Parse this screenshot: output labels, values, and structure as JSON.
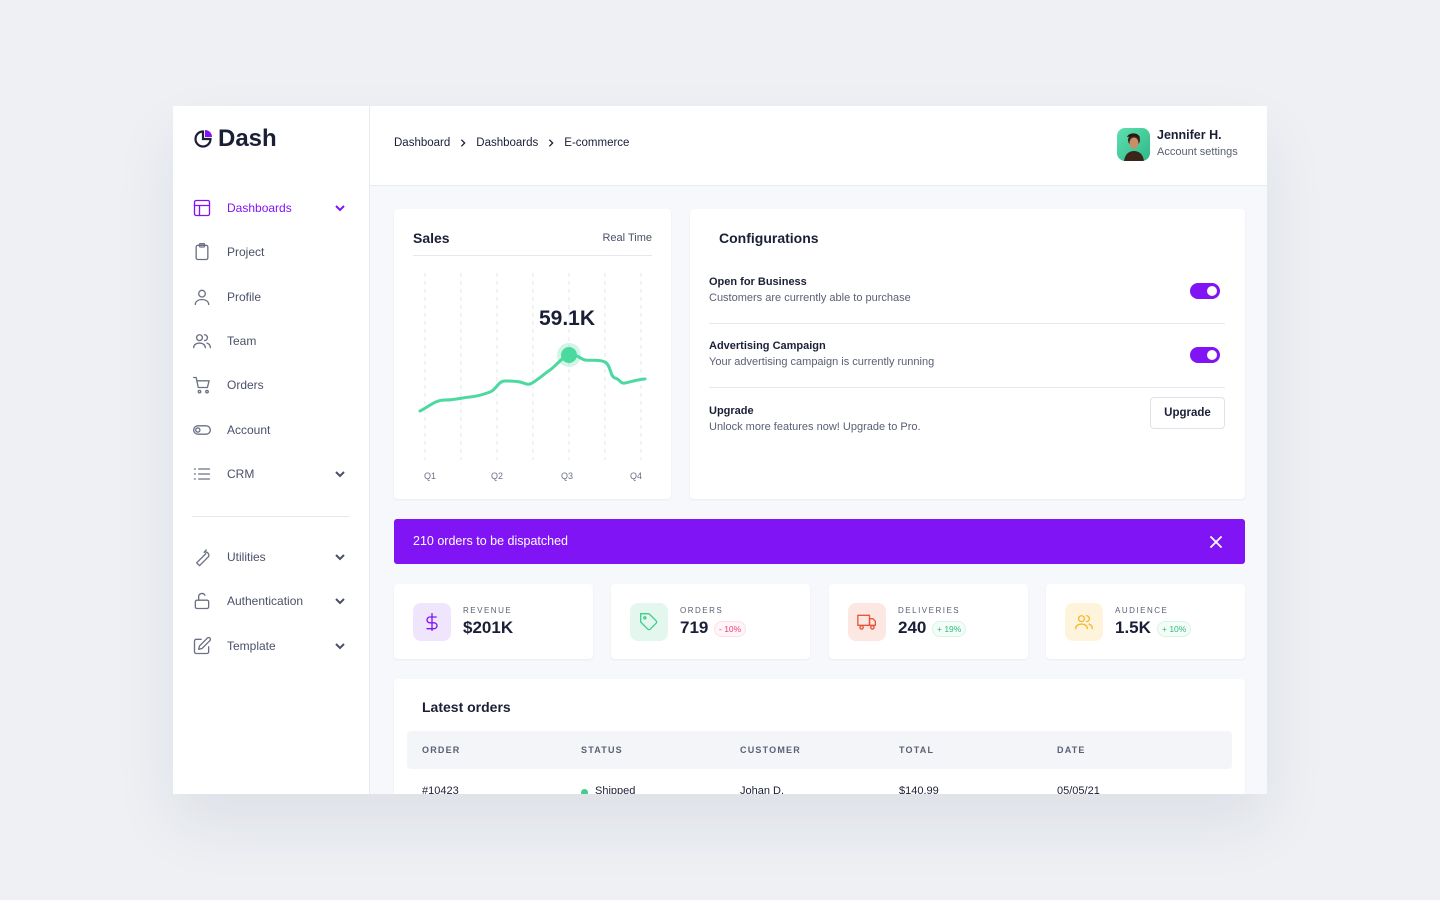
{
  "brand": "Dash",
  "nav": {
    "primary": [
      {
        "label": "Dashboards",
        "active": true,
        "expandable": true
      },
      {
        "label": "Project",
        "active": false,
        "expandable": false
      },
      {
        "label": "Profile",
        "active": false,
        "expandable": false
      },
      {
        "label": "Team",
        "active": false,
        "expandable": false
      },
      {
        "label": "Orders",
        "active": false,
        "expandable": false
      },
      {
        "label": "Account",
        "active": false,
        "expandable": false
      },
      {
        "label": "CRM",
        "active": false,
        "expandable": true
      }
    ],
    "secondary": [
      {
        "label": "Utilities",
        "active": false,
        "expandable": true
      },
      {
        "label": "Authentication",
        "active": false,
        "expandable": true
      },
      {
        "label": "Template",
        "active": false,
        "expandable": true
      }
    ]
  },
  "breadcrumb": [
    "Dashboard",
    "Dashboards",
    "E-commerce"
  ],
  "user": {
    "name": "Jennifer H.",
    "link": "Account settings"
  },
  "sales": {
    "title": "Sales",
    "mode": "Real Time",
    "highlight": "59.1K",
    "quarters": [
      "Q1",
      "Q2",
      "Q3",
      "Q4"
    ]
  },
  "configurations": {
    "title": "Configurations",
    "settings": [
      {
        "title": "Open for Business",
        "description": "Customers are currently able to purchase",
        "enabled": true
      },
      {
        "title": "Advertising Campaign",
        "description": "Your advertising campaign is currently running",
        "enabled": true
      },
      {
        "title": "Upgrade",
        "description": "Unlock more features now! Upgrade to Pro.",
        "action": "Upgrade"
      }
    ]
  },
  "banner": "210 orders to be dispatched",
  "stats": [
    {
      "label": "REVENUE",
      "value": "$201K"
    },
    {
      "label": "ORDERS",
      "value": "719",
      "change": "- 10%"
    },
    {
      "label": "DELIVERIES",
      "value": "240",
      "change": "+ 19%"
    },
    {
      "label": "AUDIENCE",
      "value": "1.5K",
      "change": "+ 10%"
    }
  ],
  "orders": {
    "title": "Latest orders",
    "columns": [
      "ORDER",
      "STATUS",
      "CUSTOMER",
      "TOTAL",
      "DATE"
    ],
    "rows": [
      [
        "#10423",
        "Shipped",
        "Johan D.",
        "$140.99",
        "05/05/21"
      ]
    ]
  }
}
